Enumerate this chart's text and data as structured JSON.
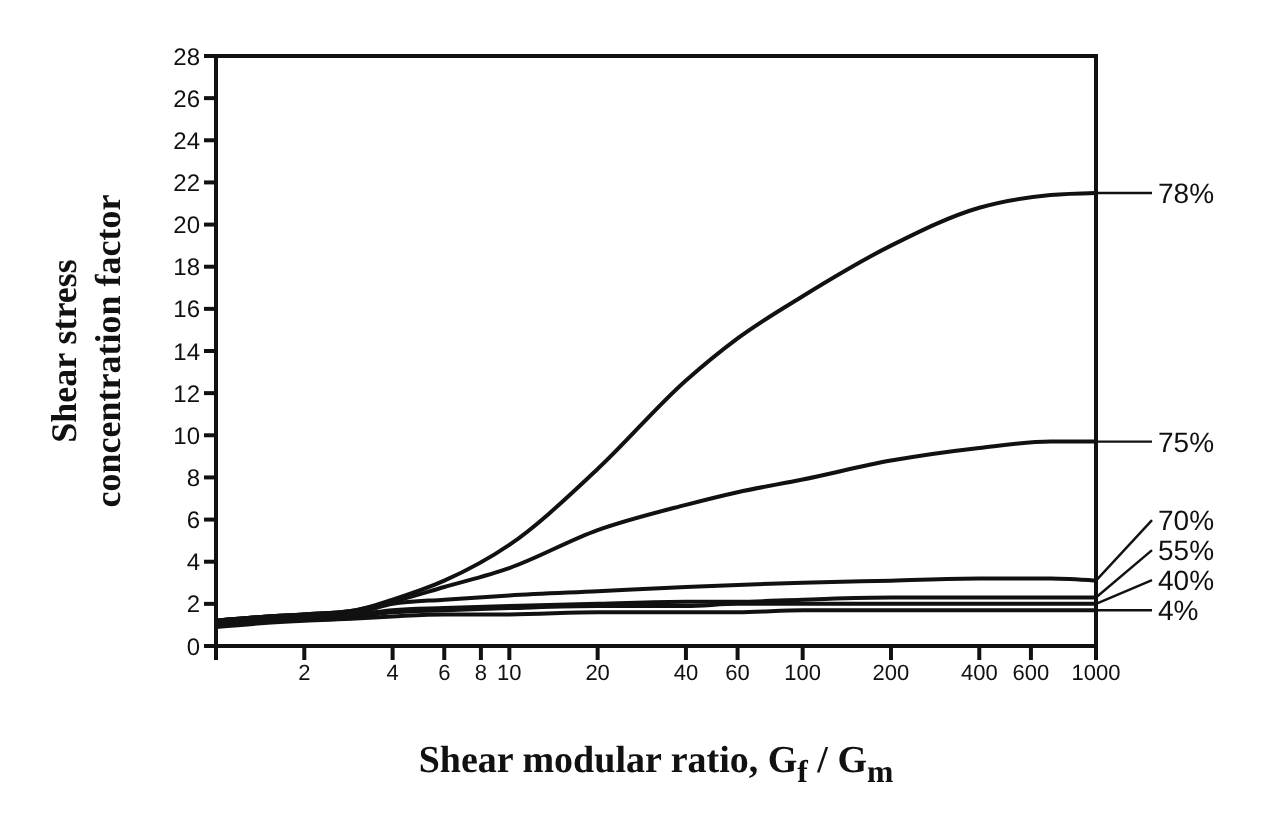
{
  "chart_data": {
    "type": "line",
    "xlabel": "Shear modular ratio, G$_{f}$ / G$_{m}$",
    "ylabel": "Shear stress concentration factor",
    "x": [
      1,
      1.5,
      2,
      3,
      4,
      6,
      10,
      20,
      40,
      60,
      100,
      200,
      400,
      700,
      1000
    ],
    "series": [
      {
        "name": "78%",
        "color": "#111111",
        "values": [
          1.2,
          1.4,
          1.5,
          1.7,
          2.2,
          3.1,
          4.8,
          8.4,
          12.6,
          14.6,
          16.6,
          19.0,
          20.8,
          21.4,
          21.5
        ]
      },
      {
        "name": "75%",
        "color": "#111111",
        "values": [
          1.2,
          1.4,
          1.5,
          1.7,
          2.1,
          2.8,
          3.7,
          5.5,
          6.7,
          7.3,
          7.9,
          8.8,
          9.4,
          9.7,
          9.7
        ]
      },
      {
        "name": "70%",
        "color": "#111111",
        "values": [
          1.2,
          1.4,
          1.5,
          1.6,
          2.0,
          2.2,
          2.4,
          2.6,
          2.8,
          2.9,
          3.0,
          3.1,
          3.2,
          3.2,
          3.1
        ]
      },
      {
        "name": "55%",
        "color": "#111111",
        "values": [
          1.1,
          1.3,
          1.4,
          1.5,
          1.7,
          1.8,
          1.9,
          2.0,
          2.1,
          2.1,
          2.2,
          2.3,
          2.3,
          2.3,
          2.3
        ]
      },
      {
        "name": "40%",
        "color": "#111111",
        "values": [
          1.0,
          1.2,
          1.3,
          1.4,
          1.6,
          1.7,
          1.8,
          1.9,
          1.9,
          2.0,
          2.0,
          2.0,
          2.0,
          2.0,
          2.0
        ]
      },
      {
        "name": "4%",
        "color": "#111111",
        "values": [
          0.9,
          1.1,
          1.2,
          1.3,
          1.4,
          1.5,
          1.5,
          1.6,
          1.6,
          1.6,
          1.7,
          1.7,
          1.7,
          1.7,
          1.7
        ]
      }
    ],
    "log": "x",
    "xlim": [
      1,
      1000
    ],
    "xticks": [
      {
        "value": 1,
        "label": null
      },
      2,
      4,
      6,
      8,
      10,
      20,
      40,
      60,
      100,
      200,
      400,
      600,
      1000
    ],
    "ylim": [
      0,
      28
    ],
    "yticks": [
      0,
      2,
      4,
      6,
      8,
      10,
      12,
      14,
      16,
      18,
      20,
      22,
      24,
      26,
      28
    ],
    "grid": false,
    "legend": "right",
    "marker": "none",
    "line_style": "solid"
  }
}
